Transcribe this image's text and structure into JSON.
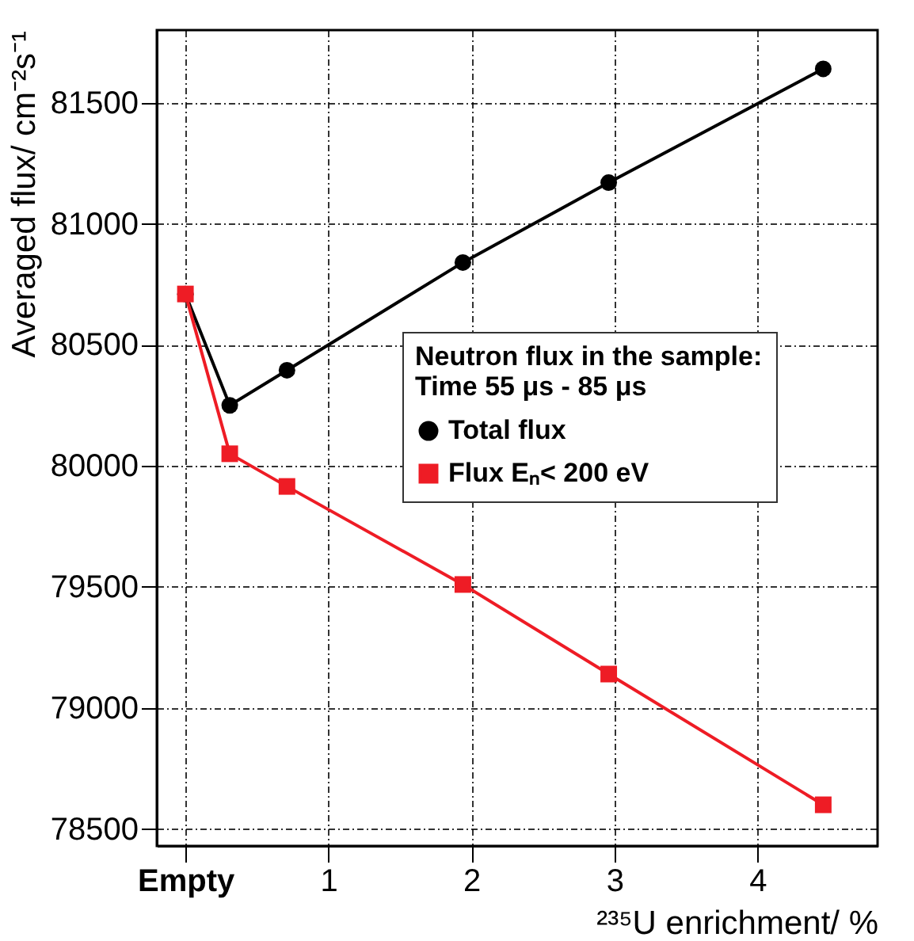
{
  "chart_data": {
    "type": "line",
    "xlabel": "²³⁵U enrichment/ %",
    "ylabel": "Averaged flux/ cm⁻²s⁻¹",
    "legend_title": "Neutron flux in the sample:\nTime 55 μs - 85 μs",
    "x": [
      0,
      0.31,
      0.71,
      1.94,
      2.96,
      4.46
    ],
    "series": [
      {
        "name": "Total flux",
        "color": "#000000",
        "marker": "circle",
        "values": [
          80710,
          80250,
          80395,
          80840,
          81170,
          81640
        ]
      },
      {
        "name": "Flux Eₙ< 200 eV",
        "color": "#ee1c25",
        "marker": "square",
        "values": [
          80710,
          80050,
          79915,
          79510,
          79140,
          78600
        ]
      }
    ],
    "xlim": [
      -0.2,
      4.84
    ],
    "xticks": [
      {
        "value": 0,
        "label": "Empty"
      },
      1,
      2,
      3,
      4
    ],
    "ylim": [
      78430,
      81800
    ],
    "yticks": [
      78500,
      79000,
      79500,
      80000,
      80500,
      81000,
      81500
    ],
    "grid": true,
    "legend": "right"
  }
}
